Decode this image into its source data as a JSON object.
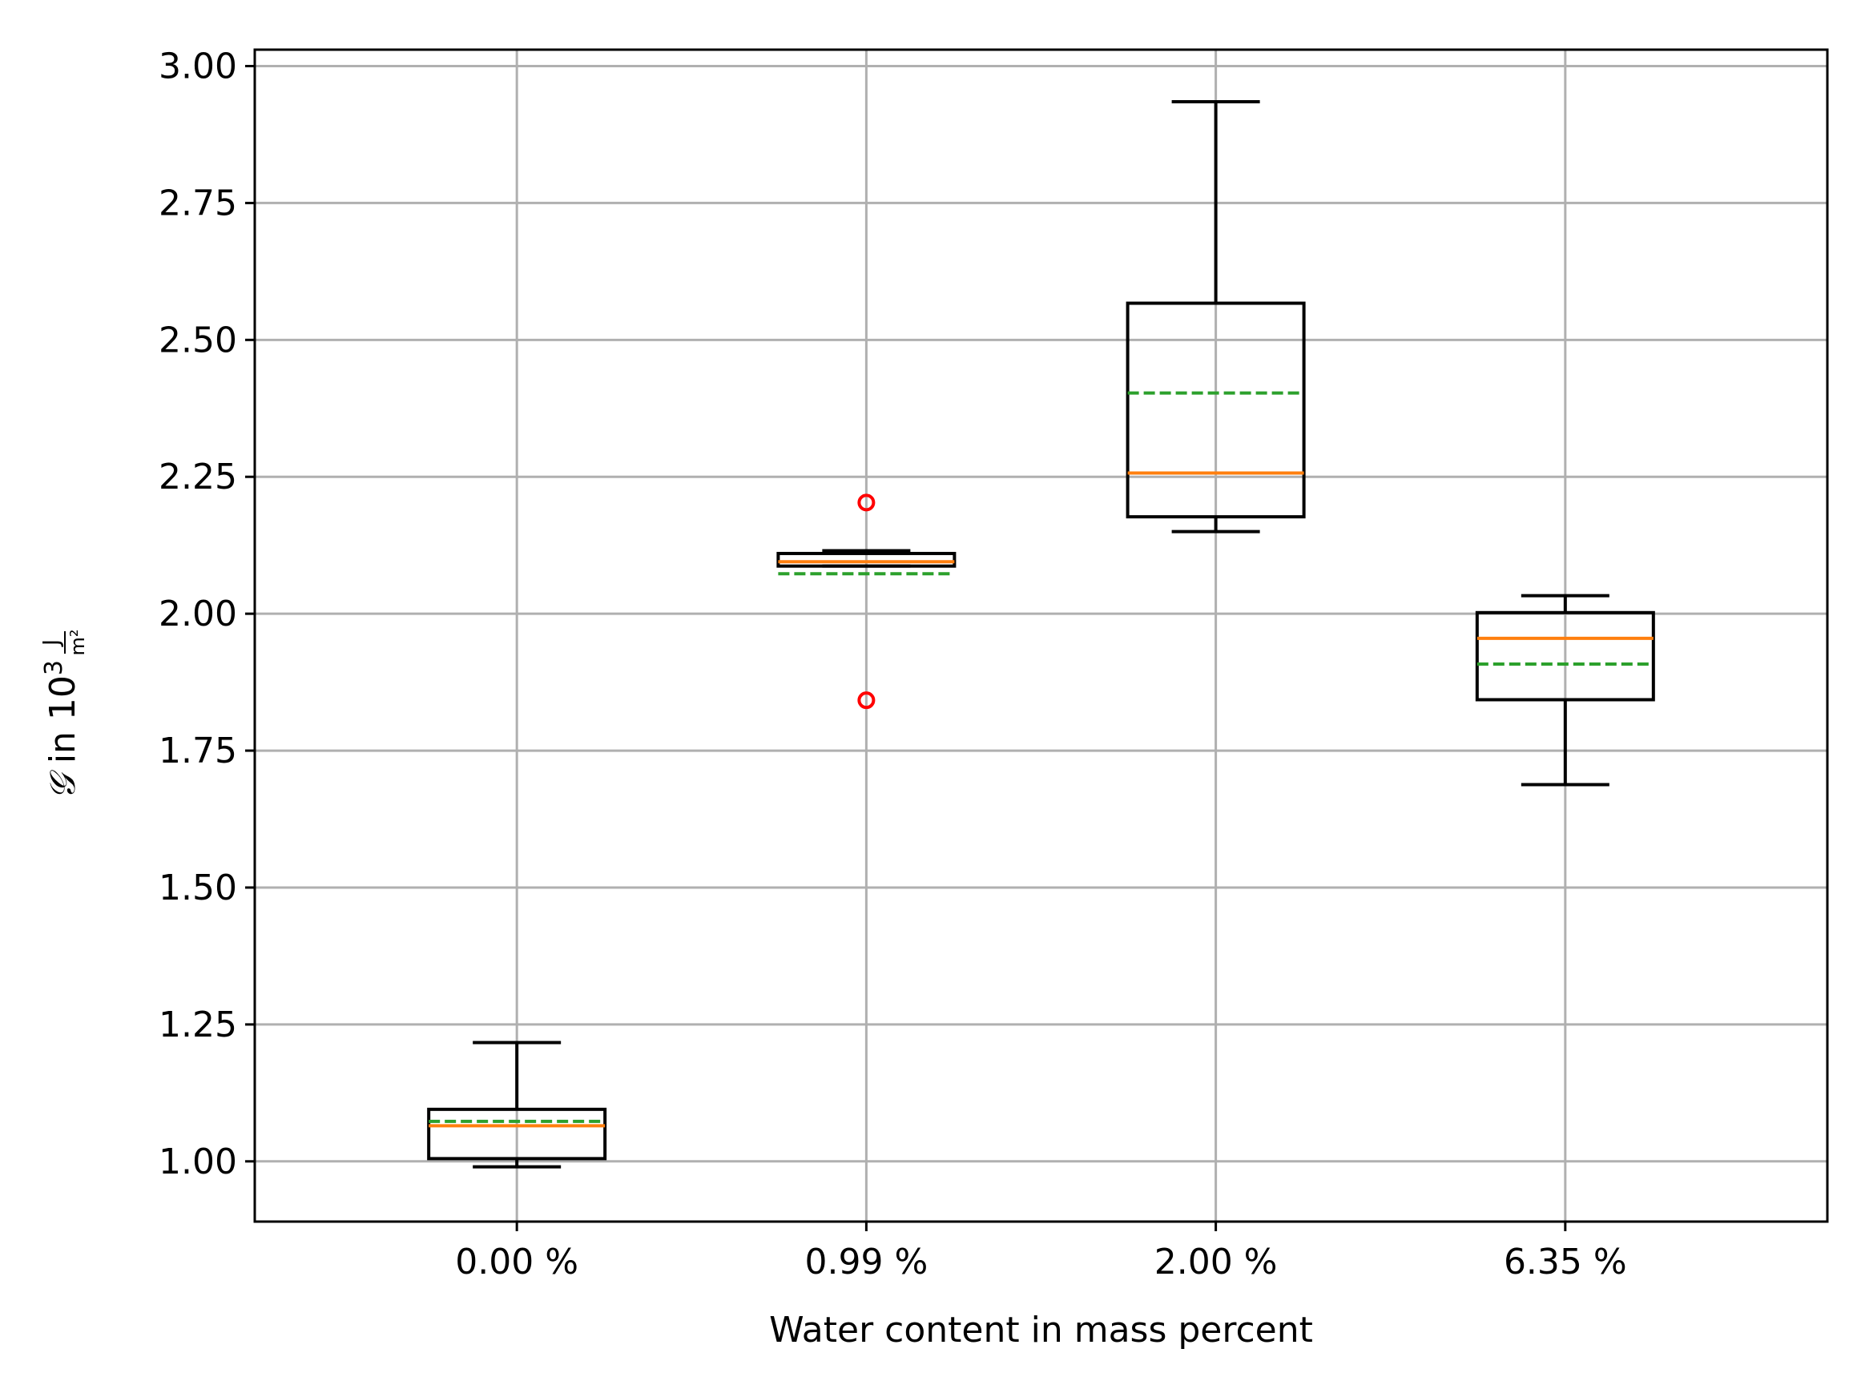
{
  "chart_data": {
    "type": "box",
    "xlabel": "Water content in mass percent",
    "ylabel": {
      "symbol": "𝒢",
      "in": " in 10",
      "exponent": "3",
      "unit_numerator": "J",
      "unit_denominator": "m²"
    },
    "ylim": [
      0.89,
      3.03
    ],
    "yticks": [
      "1.00",
      "1.25",
      "1.50",
      "1.75",
      "2.00",
      "2.25",
      "2.50",
      "2.75",
      "3.00"
    ],
    "ytick_values": [
      1.0,
      1.25,
      1.5,
      1.75,
      2.0,
      2.25,
      2.5,
      2.75,
      3.0
    ],
    "grid": true,
    "categories": [
      "0.00 %",
      "0.99 %",
      "2.00 %",
      "6.35 %"
    ],
    "boxes": [
      {
        "whisker_low": 0.99,
        "q1": 1.005,
        "median": 1.065,
        "mean": 1.073,
        "q3": 1.095,
        "whisker_high": 1.217,
        "outliers": []
      },
      {
        "whisker_low": 2.087,
        "q1": 2.087,
        "median": 2.095,
        "mean": 2.073,
        "q3": 2.11,
        "whisker_high": 2.115,
        "outliers": [
          2.203,
          1.842
        ]
      },
      {
        "whisker_low": 2.15,
        "q1": 2.177,
        "median": 2.257,
        "mean": 2.403,
        "q3": 2.567,
        "whisker_high": 2.935,
        "outliers": []
      },
      {
        "whisker_low": 1.688,
        "q1": 1.843,
        "median": 1.955,
        "mean": 1.908,
        "q3": 2.002,
        "whisker_high": 2.033,
        "outliers": []
      }
    ],
    "colors": {
      "box": "#000000",
      "median": "#ff7f0e",
      "mean": "#2ca02c",
      "outlier": "#ff0000",
      "grid": "#b0b0b0"
    }
  }
}
